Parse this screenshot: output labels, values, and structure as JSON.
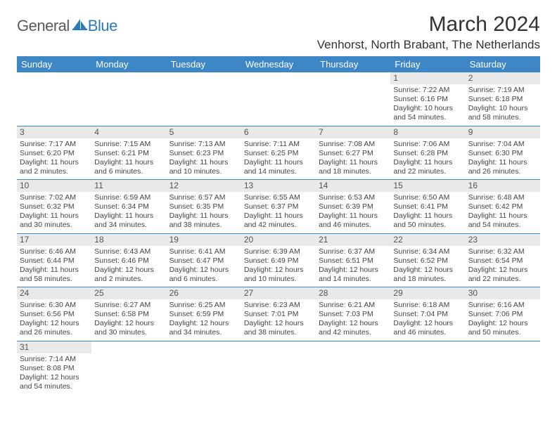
{
  "logo": {
    "text1": "General",
    "text2": "Blue",
    "sail_color": "#2b7bbf",
    "text1_color": "#5a5a5a",
    "text2_color": "#2b7bbf"
  },
  "title": "March 2024",
  "location": "Venhorst, North Brabant, The Netherlands",
  "header_bg": "#3d87c7",
  "border_color": "#3d87c7",
  "daynum_bg": "#e9e9e9",
  "day_headers": [
    "Sunday",
    "Monday",
    "Tuesday",
    "Wednesday",
    "Thursday",
    "Friday",
    "Saturday"
  ],
  "weeks": [
    [
      null,
      null,
      null,
      null,
      null,
      {
        "n": "1",
        "sr": "Sunrise: 7:22 AM",
        "ss": "Sunset: 6:16 PM",
        "dl": "Daylight: 10 hours and 54 minutes."
      },
      {
        "n": "2",
        "sr": "Sunrise: 7:19 AM",
        "ss": "Sunset: 6:18 PM",
        "dl": "Daylight: 10 hours and 58 minutes."
      }
    ],
    [
      {
        "n": "3",
        "sr": "Sunrise: 7:17 AM",
        "ss": "Sunset: 6:20 PM",
        "dl": "Daylight: 11 hours and 2 minutes."
      },
      {
        "n": "4",
        "sr": "Sunrise: 7:15 AM",
        "ss": "Sunset: 6:21 PM",
        "dl": "Daylight: 11 hours and 6 minutes."
      },
      {
        "n": "5",
        "sr": "Sunrise: 7:13 AM",
        "ss": "Sunset: 6:23 PM",
        "dl": "Daylight: 11 hours and 10 minutes."
      },
      {
        "n": "6",
        "sr": "Sunrise: 7:11 AM",
        "ss": "Sunset: 6:25 PM",
        "dl": "Daylight: 11 hours and 14 minutes."
      },
      {
        "n": "7",
        "sr": "Sunrise: 7:08 AM",
        "ss": "Sunset: 6:27 PM",
        "dl": "Daylight: 11 hours and 18 minutes."
      },
      {
        "n": "8",
        "sr": "Sunrise: 7:06 AM",
        "ss": "Sunset: 6:28 PM",
        "dl": "Daylight: 11 hours and 22 minutes."
      },
      {
        "n": "9",
        "sr": "Sunrise: 7:04 AM",
        "ss": "Sunset: 6:30 PM",
        "dl": "Daylight: 11 hours and 26 minutes."
      }
    ],
    [
      {
        "n": "10",
        "sr": "Sunrise: 7:02 AM",
        "ss": "Sunset: 6:32 PM",
        "dl": "Daylight: 11 hours and 30 minutes."
      },
      {
        "n": "11",
        "sr": "Sunrise: 6:59 AM",
        "ss": "Sunset: 6:34 PM",
        "dl": "Daylight: 11 hours and 34 minutes."
      },
      {
        "n": "12",
        "sr": "Sunrise: 6:57 AM",
        "ss": "Sunset: 6:35 PM",
        "dl": "Daylight: 11 hours and 38 minutes."
      },
      {
        "n": "13",
        "sr": "Sunrise: 6:55 AM",
        "ss": "Sunset: 6:37 PM",
        "dl": "Daylight: 11 hours and 42 minutes."
      },
      {
        "n": "14",
        "sr": "Sunrise: 6:53 AM",
        "ss": "Sunset: 6:39 PM",
        "dl": "Daylight: 11 hours and 46 minutes."
      },
      {
        "n": "15",
        "sr": "Sunrise: 6:50 AM",
        "ss": "Sunset: 6:41 PM",
        "dl": "Daylight: 11 hours and 50 minutes."
      },
      {
        "n": "16",
        "sr": "Sunrise: 6:48 AM",
        "ss": "Sunset: 6:42 PM",
        "dl": "Daylight: 11 hours and 54 minutes."
      }
    ],
    [
      {
        "n": "17",
        "sr": "Sunrise: 6:46 AM",
        "ss": "Sunset: 6:44 PM",
        "dl": "Daylight: 11 hours and 58 minutes."
      },
      {
        "n": "18",
        "sr": "Sunrise: 6:43 AM",
        "ss": "Sunset: 6:46 PM",
        "dl": "Daylight: 12 hours and 2 minutes."
      },
      {
        "n": "19",
        "sr": "Sunrise: 6:41 AM",
        "ss": "Sunset: 6:47 PM",
        "dl": "Daylight: 12 hours and 6 minutes."
      },
      {
        "n": "20",
        "sr": "Sunrise: 6:39 AM",
        "ss": "Sunset: 6:49 PM",
        "dl": "Daylight: 12 hours and 10 minutes."
      },
      {
        "n": "21",
        "sr": "Sunrise: 6:37 AM",
        "ss": "Sunset: 6:51 PM",
        "dl": "Daylight: 12 hours and 14 minutes."
      },
      {
        "n": "22",
        "sr": "Sunrise: 6:34 AM",
        "ss": "Sunset: 6:52 PM",
        "dl": "Daylight: 12 hours and 18 minutes."
      },
      {
        "n": "23",
        "sr": "Sunrise: 6:32 AM",
        "ss": "Sunset: 6:54 PM",
        "dl": "Daylight: 12 hours and 22 minutes."
      }
    ],
    [
      {
        "n": "24",
        "sr": "Sunrise: 6:30 AM",
        "ss": "Sunset: 6:56 PM",
        "dl": "Daylight: 12 hours and 26 minutes."
      },
      {
        "n": "25",
        "sr": "Sunrise: 6:27 AM",
        "ss": "Sunset: 6:58 PM",
        "dl": "Daylight: 12 hours and 30 minutes."
      },
      {
        "n": "26",
        "sr": "Sunrise: 6:25 AM",
        "ss": "Sunset: 6:59 PM",
        "dl": "Daylight: 12 hours and 34 minutes."
      },
      {
        "n": "27",
        "sr": "Sunrise: 6:23 AM",
        "ss": "Sunset: 7:01 PM",
        "dl": "Daylight: 12 hours and 38 minutes."
      },
      {
        "n": "28",
        "sr": "Sunrise: 6:21 AM",
        "ss": "Sunset: 7:03 PM",
        "dl": "Daylight: 12 hours and 42 minutes."
      },
      {
        "n": "29",
        "sr": "Sunrise: 6:18 AM",
        "ss": "Sunset: 7:04 PM",
        "dl": "Daylight: 12 hours and 46 minutes."
      },
      {
        "n": "30",
        "sr": "Sunrise: 6:16 AM",
        "ss": "Sunset: 7:06 PM",
        "dl": "Daylight: 12 hours and 50 minutes."
      }
    ],
    [
      {
        "n": "31",
        "sr": "Sunrise: 7:14 AM",
        "ss": "Sunset: 8:08 PM",
        "dl": "Daylight: 12 hours and 54 minutes."
      },
      null,
      null,
      null,
      null,
      null,
      null
    ]
  ]
}
